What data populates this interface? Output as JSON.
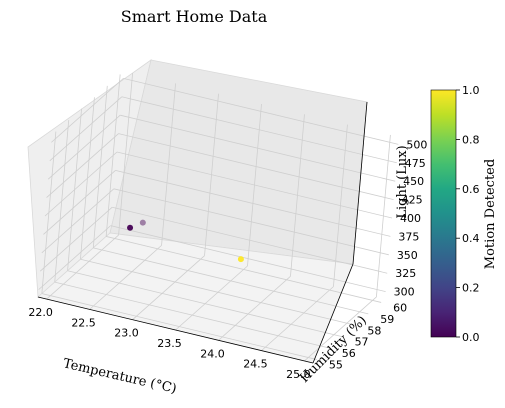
{
  "chart_data": {
    "type": "scatter",
    "title": "Smart Home Data",
    "xlabel": "Temperature (°C)",
    "ylabel": "Humidity (%)",
    "zlabel": "Light (Lux)",
    "colorbar_label": "Motion Detected",
    "colormap": "viridis",
    "xlim": [
      21.9,
      25.1
    ],
    "ylim": [
      54.7,
      60.3
    ],
    "zlim": [
      290,
      510
    ],
    "clim": [
      0,
      1
    ],
    "x_ticks": [
      "22.0",
      "22.5",
      "23.0",
      "23.5",
      "24.0",
      "24.5",
      "25.0"
    ],
    "y_ticks": [
      "55",
      "56",
      "57",
      "58",
      "59",
      "60"
    ],
    "z_ticks": [
      "300",
      "325",
      "350",
      "375",
      "400",
      "425",
      "450",
      "475",
      "500"
    ],
    "c_ticks": [
      "0.0",
      "0.2",
      "0.4",
      "0.6",
      "0.8",
      "1.0"
    ],
    "points": [
      {
        "x": 22.8,
        "y": 55.3,
        "z": 400,
        "motion": 0
      },
      {
        "x": 22.9,
        "y": 55.6,
        "z": 405,
        "motion": 0
      },
      {
        "x": 24.0,
        "y": 56.0,
        "z": 380,
        "motion": 1
      }
    ],
    "grid": true
  }
}
